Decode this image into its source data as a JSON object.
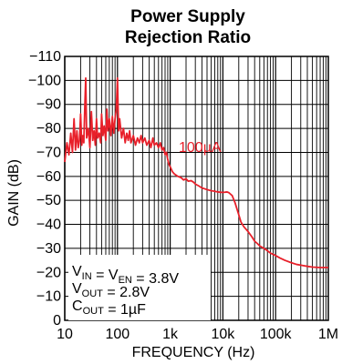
{
  "chart_data": {
    "type": "line",
    "title": [
      "Power Supply",
      "Rejection Ratio"
    ],
    "xlabel": "FREQUENCY (Hz)",
    "ylabel": "GAIN (dB)",
    "x_scale": "log",
    "xlim": [
      10,
      1000000
    ],
    "ylim": [
      0,
      110
    ],
    "x_ticks": [
      {
        "value": 10,
        "label": "10"
      },
      {
        "value": 100,
        "label": "100"
      },
      {
        "value": 1000,
        "label": "1k"
      },
      {
        "value": 10000,
        "label": "10k"
      },
      {
        "value": 100000,
        "label": "100k"
      },
      {
        "value": 1000000,
        "label": "1M"
      }
    ],
    "y_ticks": [
      {
        "value": 0,
        "label": "0"
      },
      {
        "value": 10,
        "label": "−10"
      },
      {
        "value": 20,
        "label": "−20"
      },
      {
        "value": 30,
        "label": "−30"
      },
      {
        "value": 40,
        "label": "−40"
      },
      {
        "value": 50,
        "label": "−50"
      },
      {
        "value": 60,
        "label": "−60"
      },
      {
        "value": 70,
        "label": "−70"
      },
      {
        "value": 80,
        "label": "−80"
      },
      {
        "value": 90,
        "label": "−90"
      },
      {
        "value": 100,
        "label": "−100"
      },
      {
        "value": 110,
        "label": "−110"
      }
    ],
    "grid": true,
    "series": [
      {
        "name": "100µA",
        "color": "#e8202a",
        "points": [
          [
            10,
            66
          ],
          [
            11,
            74
          ],
          [
            12,
            69
          ],
          [
            13,
            78
          ],
          [
            14,
            70
          ],
          [
            15,
            84
          ],
          [
            16,
            71
          ],
          [
            17,
            79
          ],
          [
            18,
            72
          ],
          [
            19,
            75
          ],
          [
            20,
            86
          ],
          [
            21,
            73
          ],
          [
            22,
            77
          ],
          [
            23,
            74
          ],
          [
            24,
            89
          ],
          [
            25,
            101
          ],
          [
            26,
            76
          ],
          [
            28,
            80
          ],
          [
            30,
            72
          ],
          [
            32,
            87
          ],
          [
            34,
            75
          ],
          [
            36,
            79
          ],
          [
            38,
            73
          ],
          [
            40,
            84
          ],
          [
            42,
            76
          ],
          [
            45,
            78
          ],
          [
            48,
            74
          ],
          [
            50,
            86
          ],
          [
            53,
            77
          ],
          [
            56,
            81
          ],
          [
            60,
            75
          ],
          [
            63,
            88
          ],
          [
            66,
            79
          ],
          [
            70,
            84
          ],
          [
            75,
            77
          ],
          [
            80,
            85
          ],
          [
            85,
            78
          ],
          [
            90,
            84
          ],
          [
            95,
            88
          ],
          [
            100,
            101
          ],
          [
            105,
            79
          ],
          [
            110,
            84
          ],
          [
            120,
            76
          ],
          [
            130,
            80
          ],
          [
            140,
            74
          ],
          [
            150,
            78
          ],
          [
            160,
            75
          ],
          [
            170,
            79
          ],
          [
            180,
            74
          ],
          [
            200,
            77
          ],
          [
            220,
            73
          ],
          [
            240,
            76
          ],
          [
            260,
            74
          ],
          [
            280,
            77
          ],
          [
            300,
            74
          ],
          [
            330,
            76
          ],
          [
            360,
            73
          ],
          [
            400,
            75
          ],
          [
            430,
            72
          ],
          [
            470,
            76
          ],
          [
            500,
            73
          ],
          [
            550,
            74
          ],
          [
            600,
            72
          ],
          [
            650,
            74
          ],
          [
            700,
            71
          ],
          [
            750,
            72
          ],
          [
            800,
            69
          ],
          [
            850,
            70
          ],
          [
            900,
            67
          ],
          [
            950,
            65
          ],
          [
            1000,
            64
          ],
          [
            1100,
            62
          ],
          [
            1200,
            61
          ],
          [
            1400,
            60
          ],
          [
            1600,
            59.5
          ],
          [
            1800,
            58.5
          ],
          [
            2000,
            59
          ],
          [
            2200,
            58
          ],
          [
            2500,
            58.2
          ],
          [
            2800,
            57.5
          ],
          [
            3000,
            56.8
          ],
          [
            3500,
            56
          ],
          [
            4000,
            55.2
          ],
          [
            5000,
            54.5
          ],
          [
            6000,
            54
          ],
          [
            7000,
            53.8
          ],
          [
            8000,
            53.5
          ],
          [
            10000,
            53.3
          ],
          [
            12000,
            53.5
          ],
          [
            13000,
            53.2
          ],
          [
            15000,
            52
          ],
          [
            17000,
            49
          ],
          [
            20000,
            44
          ],
          [
            22000,
            41
          ],
          [
            25000,
            39
          ],
          [
            30000,
            37
          ],
          [
            35000,
            35
          ],
          [
            40000,
            33
          ],
          [
            45000,
            32
          ],
          [
            50000,
            31
          ],
          [
            60000,
            30
          ],
          [
            70000,
            29
          ],
          [
            80000,
            28
          ],
          [
            100000,
            27
          ],
          [
            120000,
            26
          ],
          [
            150000,
            25
          ],
          [
            200000,
            24
          ],
          [
            250000,
            23.3
          ],
          [
            300000,
            23
          ],
          [
            400000,
            22.5
          ],
          [
            500000,
            22.2
          ],
          [
            700000,
            22
          ],
          [
            1000000,
            22
          ]
        ]
      }
    ],
    "annotation_lines": [
      [
        {
          "t": "V"
        },
        {
          "t": "IN",
          "sub": true
        },
        {
          "t": " = V"
        },
        {
          "t": "EN",
          "sub": true
        },
        {
          "t": " = 3.8V"
        }
      ],
      [
        {
          "t": "V"
        },
        {
          "t": "OUT",
          "sub": true
        },
        {
          "t": " = 2.8V"
        }
      ],
      [
        {
          "t": "C"
        },
        {
          "t": "OUT",
          "sub": true
        },
        {
          "t": " = 1µF"
        }
      ]
    ]
  }
}
